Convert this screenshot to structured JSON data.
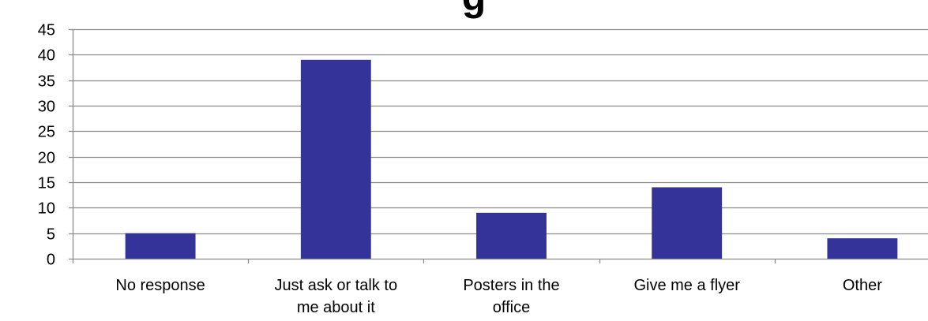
{
  "chart_data": {
    "type": "bar",
    "title": "g",
    "xlabel": "",
    "ylabel": "",
    "categories": [
      [
        "No response"
      ],
      [
        "Just ask or talk to",
        "me about it"
      ],
      [
        "Posters in the",
        "office"
      ],
      [
        "Give me a flyer"
      ],
      [
        "Other"
      ]
    ],
    "values": [
      5,
      39,
      9,
      14,
      4
    ],
    "ylim": [
      0,
      45
    ],
    "yticks": [
      0,
      5,
      10,
      15,
      20,
      25,
      30,
      35,
      40,
      45
    ],
    "grid": true,
    "legend": "none",
    "bar_color": "#333399",
    "grid_color": "#8c8c8c",
    "axis_color": "#8c8c8c"
  }
}
